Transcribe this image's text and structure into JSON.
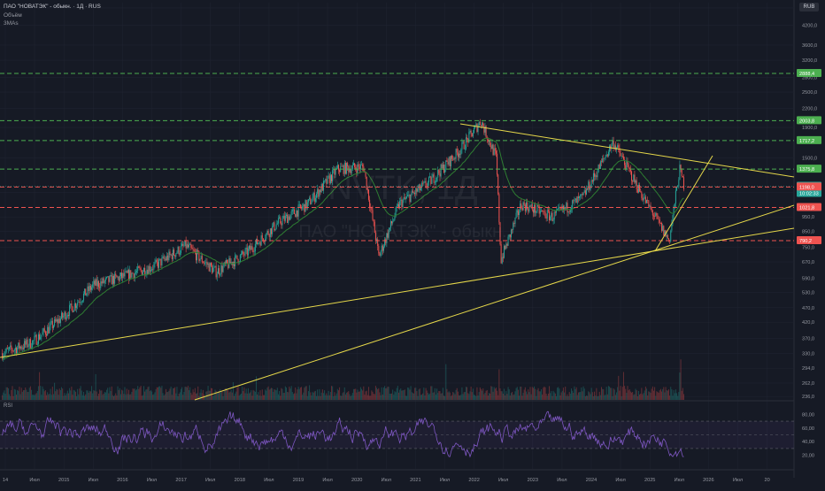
{
  "header": {
    "title": "ПАО \"НОВАТЭК\" - обыкн. · 1Д · RUS",
    "volume_label": "Объём",
    "ema_label": "3MAs",
    "currency": "RUB"
  },
  "watermark": {
    "ticker": "NVTK, 1Д",
    "name": "ПАО \"НОВАТЭК\" - обыкн."
  },
  "colors": {
    "background": "#161a25",
    "up": "#26a69a",
    "down": "#ef5350",
    "ema": "#2e7d32",
    "trendline": "#e6d84a",
    "resistance_green": "#4caf50",
    "support_red": "#ef5350",
    "rsi": "#7e57c2"
  },
  "price_axis": {
    "ticks": [
      "4800,0",
      "4200,0",
      "3600,0",
      "3200,0",
      "2800,0",
      "2500,0",
      "2200,0",
      "1900,0",
      "1500,0",
      "1150,0",
      "950,0",
      "850,0",
      "750,0",
      "670,0",
      "590,0",
      "530,0",
      "470,0",
      "420,0",
      "370,0",
      "330,0",
      "294,0",
      "262,0",
      "236,0"
    ]
  },
  "price_labels": [
    {
      "value": "2888,4",
      "color": "#4caf50"
    },
    {
      "value": "2003,8",
      "color": "#4caf50"
    },
    {
      "value": "1717,2",
      "color": "#4caf50"
    },
    {
      "value": "1375,8",
      "color": "#4caf50"
    },
    {
      "value": "1205,0",
      "color": "#26a69a"
    },
    {
      "value": "10:02:33",
      "color": "#26a69a"
    },
    {
      "value": "1198,0",
      "color": "#ef5350"
    },
    {
      "value": "1021,8",
      "color": "#ef5350"
    },
    {
      "value": "790,2",
      "color": "#ef5350"
    }
  ],
  "rsi_axis": {
    "label": "RSI",
    "ticks": [
      "80,00",
      "60,00",
      "40,00",
      "20,00"
    ]
  },
  "time_axis": {
    "ticks": [
      "14",
      "Июл",
      "2015",
      "Июл",
      "2016",
      "Июл",
      "2017",
      "Июл",
      "2018",
      "Июл",
      "2019",
      "Июл",
      "2020",
      "Июл",
      "2021",
      "Июл",
      "2022",
      "Июл",
      "2023",
      "Июл",
      "2024",
      "Июл",
      "2025",
      "Июл",
      "2026",
      "Июл",
      "20"
    ]
  },
  "chart_data": {
    "type": "candlestick",
    "title": "ПАО \"НОВАТЭК\" - обыкн. · 1Д · RUS",
    "y_scale": "log",
    "ylim": [
      230,
      5000
    ],
    "x_range": [
      "2014-01-01",
      "2026-12-31"
    ],
    "approx_close_series": [
      {
        "date": "2014-01",
        "close": 330
      },
      {
        "date": "2014-07",
        "close": 360
      },
      {
        "date": "2015-01",
        "close": 440
      },
      {
        "date": "2015-07",
        "close": 560
      },
      {
        "date": "2016-01",
        "close": 600
      },
      {
        "date": "2016-07",
        "close": 650
      },
      {
        "date": "2017-01",
        "close": 760
      },
      {
        "date": "2017-07",
        "close": 620
      },
      {
        "date": "2018-01",
        "close": 720
      },
      {
        "date": "2018-07",
        "close": 900
      },
      {
        "date": "2019-01",
        "close": 1050
      },
      {
        "date": "2019-07",
        "close": 1380
      },
      {
        "date": "2019-12",
        "close": 1400
      },
      {
        "date": "2020-03",
        "close": 700
      },
      {
        "date": "2020-07",
        "close": 1050
      },
      {
        "date": "2021-01",
        "close": 1250
      },
      {
        "date": "2021-07",
        "close": 1600
      },
      {
        "date": "2021-11",
        "close": 2000
      },
      {
        "date": "2022-02",
        "close": 1500
      },
      {
        "date": "2022-03",
        "close": 680
      },
      {
        "date": "2022-07",
        "close": 1050
      },
      {
        "date": "2023-01",
        "close": 950
      },
      {
        "date": "2023-07",
        "close": 1100
      },
      {
        "date": "2024-01",
        "close": 1700
      },
      {
        "date": "2024-07",
        "close": 1100
      },
      {
        "date": "2024-12",
        "close": 790
      },
      {
        "date": "2025-02",
        "close": 1375
      },
      {
        "date": "2025-03",
        "close": 1205
      }
    ],
    "horizontal_levels": {
      "resistance": [
        2888.4,
        2003.8,
        1717.2,
        1375.8
      ],
      "support": [
        1198.0,
        1021.8,
        790.2
      ]
    },
    "current_price": 1205.0,
    "rsi_range": [
      0,
      100
    ],
    "rsi_bands": [
      30,
      70
    ]
  }
}
